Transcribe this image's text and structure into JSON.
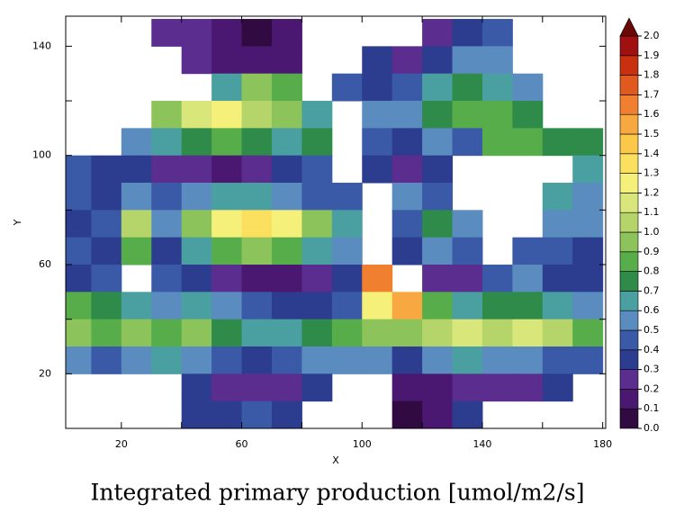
{
  "chart_data": {
    "type": "heatmap",
    "title": "Integrated primary production [umol/m2/s]",
    "x_label": "X",
    "y_label": "Y",
    "xlim": [
      1.5,
      181
    ],
    "ylim": [
      0,
      151
    ],
    "xticks": [
      20,
      60,
      100,
      140,
      180
    ],
    "xminor": [
      40,
      80,
      120,
      160
    ],
    "yticks": [
      20,
      60,
      100,
      140
    ],
    "yminor": [
      40,
      80,
      120
    ],
    "x": [
      5,
      15,
      25,
      35,
      45,
      55,
      65,
      75,
      85,
      95,
      105,
      115,
      125,
      135,
      145,
      155,
      165,
      175
    ],
    "y": [
      145,
      135,
      125,
      115,
      105,
      95,
      85,
      75,
      65,
      55,
      45,
      35,
      25,
      15,
      5
    ],
    "values": [
      [
        null,
        null,
        null,
        0.25,
        0.2,
        0.15,
        0.05,
        0.1,
        null,
        null,
        null,
        null,
        0.2,
        0.3,
        0.4,
        null,
        null,
        null
      ],
      [
        null,
        null,
        null,
        null,
        0.2,
        0.15,
        0.1,
        0.15,
        null,
        null,
        0.3,
        0.2,
        0.3,
        0.5,
        0.5,
        null,
        null,
        null
      ],
      [
        null,
        null,
        null,
        null,
        null,
        0.6,
        0.9,
        0.8,
        null,
        0.4,
        0.3,
        0.4,
        0.6,
        0.7,
        0.6,
        0.5,
        null,
        null
      ],
      [
        null,
        null,
        null,
        0.9,
        1.1,
        1.2,
        1.0,
        0.9,
        0.6,
        null,
        0.5,
        0.5,
        0.7,
        0.8,
        0.8,
        0.7,
        null,
        null
      ],
      [
        null,
        null,
        0.5,
        0.6,
        0.7,
        0.8,
        0.7,
        0.6,
        0.7,
        null,
        0.4,
        0.3,
        0.5,
        0.4,
        0.8,
        0.8,
        0.7,
        0.7
      ],
      [
        0.4,
        0.3,
        0.3,
        0.25,
        0.2,
        0.15,
        0.2,
        0.3,
        0.4,
        null,
        0.3,
        0.25,
        0.3,
        null,
        null,
        null,
        null,
        0.6
      ],
      [
        0.4,
        0.3,
        0.5,
        0.4,
        0.5,
        0.6,
        0.6,
        0.5,
        0.4,
        0.4,
        null,
        0.5,
        0.4,
        null,
        null,
        null,
        0.6,
        0.5
      ],
      [
        0.3,
        0.4,
        1.0,
        0.5,
        0.9,
        1.2,
        1.3,
        1.2,
        0.9,
        0.6,
        null,
        0.4,
        0.7,
        0.5,
        null,
        null,
        0.5,
        0.5
      ],
      [
        0.4,
        0.3,
        0.8,
        0.3,
        0.6,
        0.8,
        0.9,
        0.8,
        0.6,
        0.5,
        null,
        0.3,
        0.5,
        0.4,
        null,
        0.4,
        0.4,
        0.3
      ],
      [
        0.3,
        0.4,
        null,
        0.4,
        0.3,
        0.2,
        0.1,
        0.1,
        0.2,
        0.3,
        1.6,
        null,
        0.2,
        0.25,
        0.4,
        0.5,
        0.3,
        0.3
      ],
      [
        0.8,
        0.7,
        0.6,
        0.5,
        0.6,
        0.5,
        0.4,
        0.3,
        0.35,
        0.4,
        1.2,
        1.5,
        0.8,
        0.6,
        0.7,
        0.7,
        0.6,
        0.5
      ],
      [
        0.9,
        0.8,
        0.9,
        0.8,
        0.9,
        0.7,
        0.6,
        0.6,
        0.7,
        0.8,
        0.9,
        0.9,
        1.0,
        1.1,
        1.0,
        1.1,
        1.0,
        0.8
      ],
      [
        0.5,
        0.4,
        0.5,
        0.6,
        0.5,
        0.4,
        0.3,
        0.4,
        0.5,
        0.5,
        0.5,
        0.3,
        0.5,
        0.6,
        0.5,
        0.5,
        0.4,
        0.4
      ],
      [
        null,
        null,
        null,
        null,
        0.3,
        0.25,
        0.2,
        0.2,
        0.3,
        null,
        null,
        0.15,
        0.1,
        0.2,
        0.25,
        0.2,
        0.3,
        null
      ],
      [
        null,
        null,
        null,
        null,
        0.3,
        0.3,
        0.4,
        0.3,
        null,
        null,
        null,
        0.05,
        0.1,
        0.3,
        null,
        null,
        null,
        null
      ]
    ],
    "colorbar": {
      "ticks": [
        {
          "value": 0,
          "label": "0.0"
        },
        {
          "value": 0.1,
          "label": "0.1"
        },
        {
          "value": 0.2,
          "label": "0.2"
        },
        {
          "value": 0.3,
          "label": "0.3"
        },
        {
          "value": 0.4,
          "label": "0.4"
        },
        {
          "value": 0.5,
          "label": "0.5"
        },
        {
          "value": 0.6,
          "label": "0.6"
        },
        {
          "value": 0.7,
          "label": "0.7"
        },
        {
          "value": 0.8,
          "label": "0.8"
        },
        {
          "value": 0.9,
          "label": "0.9"
        },
        {
          "value": 1,
          "label": "1.0"
        },
        {
          "value": 1.1,
          "label": "1.1"
        },
        {
          "value": 1.2,
          "label": "1.2"
        },
        {
          "value": 1.3,
          "label": "1.3"
        },
        {
          "value": 1.4,
          "label": "1.4"
        },
        {
          "value": 1.5,
          "label": "1.5"
        },
        {
          "value": 1.6,
          "label": "1.6"
        },
        {
          "value": 1.7,
          "label": "1.7"
        },
        {
          "value": 1.8,
          "label": "1.8"
        },
        {
          "value": 1.9,
          "label": "1.9"
        },
        {
          "value": 2,
          "label": "2.0"
        }
      ],
      "colors": [
        "#300a40",
        "#4a1870",
        "#5b2d8f",
        "#2c3c8f",
        "#3a5aa8",
        "#5a8cc0",
        "#4aa0a0",
        "#2e8b4a",
        "#57ad4a",
        "#8cc35a",
        "#b5d56a",
        "#d8e67a",
        "#f5f07a",
        "#fbe060",
        "#fbc84a",
        "#f8a840",
        "#f08030",
        "#e05a20",
        "#c83010",
        "#a01010"
      ],
      "over_color": "#6a0808"
    }
  }
}
